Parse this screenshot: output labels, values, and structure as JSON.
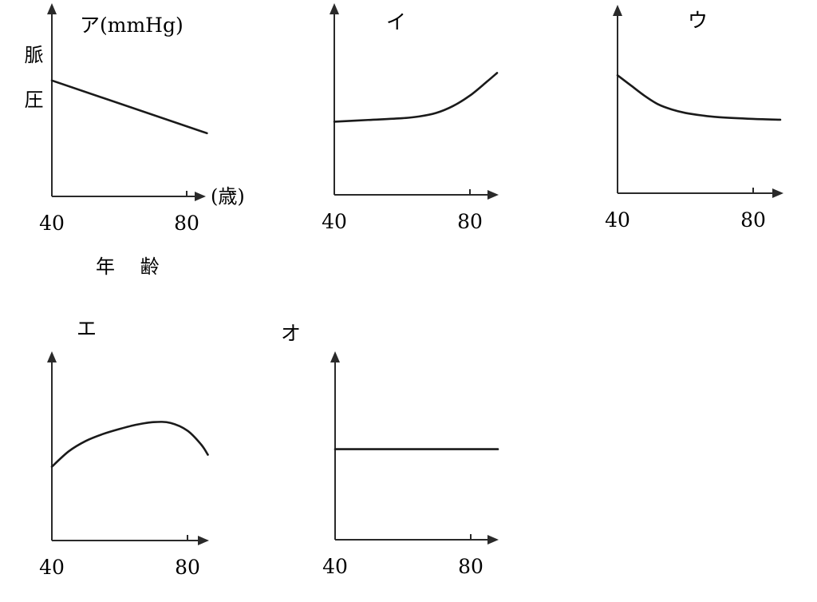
{
  "chart_data": [
    {
      "type": "line",
      "title": "ア(mmHg)",
      "ylabel": "脈圧",
      "xlabel": "年 齢",
      "x_unit": "(歳)",
      "xticks": [
        40,
        80
      ],
      "xlim": [
        40,
        86
      ],
      "ylim": [
        0,
        100
      ],
      "series": [
        {
          "x": [
            40,
            86
          ],
          "y": [
            66,
            36
          ]
        }
      ]
    },
    {
      "type": "line",
      "title": "イ",
      "xticks": [
        40,
        80
      ],
      "xlim": [
        40,
        88
      ],
      "ylim": [
        0,
        100
      ],
      "series": [
        {
          "x": [
            40,
            50,
            60,
            65,
            70,
            75,
            80,
            85,
            88
          ],
          "y": [
            42,
            43,
            44,
            45,
            47,
            51,
            57,
            65,
            70
          ]
        }
      ]
    },
    {
      "type": "line",
      "title": "ウ",
      "xticks": [
        40,
        80
      ],
      "xlim": [
        40,
        88
      ],
      "ylim": [
        0,
        100
      ],
      "series": [
        {
          "x": [
            40,
            44,
            48,
            52,
            56,
            60,
            65,
            70,
            80,
            88
          ],
          "y": [
            69,
            63,
            57,
            52,
            49,
            47,
            45.5,
            44.5,
            43.5,
            43
          ]
        }
      ]
    },
    {
      "type": "line",
      "title": "エ",
      "xticks": [
        40,
        80
      ],
      "xlim": [
        40,
        86
      ],
      "ylim": [
        0,
        100
      ],
      "series": [
        {
          "x": [
            40,
            45,
            50,
            55,
            60,
            65,
            70,
            75,
            80,
            84,
            86
          ],
          "y": [
            43,
            52,
            58,
            62,
            65,
            67.5,
            69,
            68.5,
            64,
            56,
            50
          ]
        }
      ]
    },
    {
      "type": "line",
      "title": "オ",
      "xticks": [
        40,
        80
      ],
      "xlim": [
        40,
        88
      ],
      "ylim": [
        0,
        100
      ],
      "series": [
        {
          "x": [
            40,
            88
          ],
          "y": [
            53,
            53
          ]
        }
      ]
    }
  ]
}
